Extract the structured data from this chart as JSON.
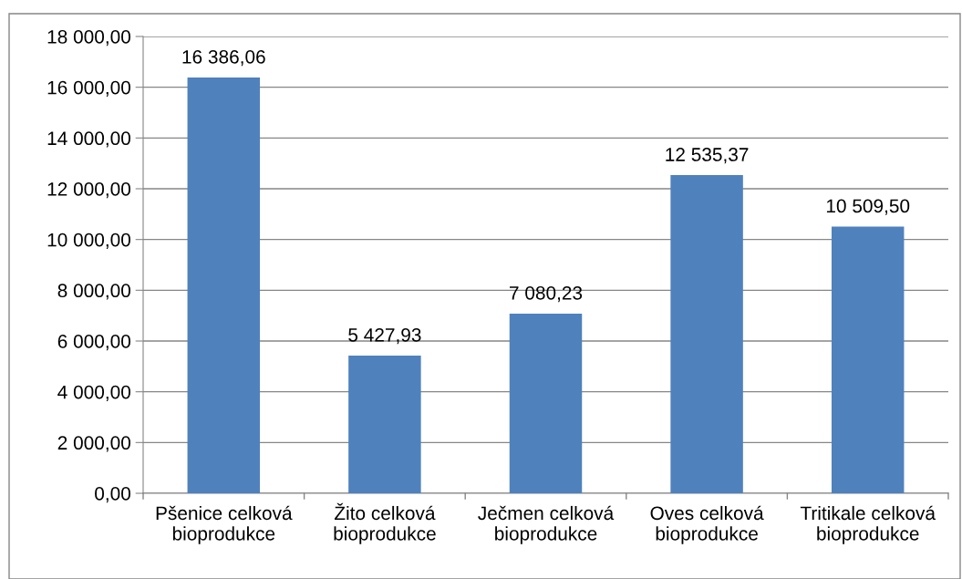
{
  "chart_data": {
    "type": "bar",
    "categories": [
      "Pšenice celková bioprodukce",
      "Žito celková bioprodukce",
      "Ječmen celková bioprodukce",
      "Oves celková bioprodukce",
      "Tritikale celková bioprodukce"
    ],
    "values": [
      16386.06,
      5427.93,
      7080.23,
      12535.37,
      10509.5
    ],
    "value_labels": [
      "16 386,06",
      "5 427,93",
      "7 080,23",
      "12 535,37",
      "10 509,50"
    ],
    "color": "#4f81bd",
    "ylim": [
      0,
      18000
    ],
    "yticks": [
      {
        "value": 0,
        "label": "0,00"
      },
      {
        "value": 2000,
        "label": "2 000,00"
      },
      {
        "value": 4000,
        "label": "4 000,00"
      },
      {
        "value": 6000,
        "label": "6 000,00"
      },
      {
        "value": 8000,
        "label": "8 000,00"
      },
      {
        "value": 10000,
        "label": "10 000,00"
      },
      {
        "value": 12000,
        "label": "12 000,00"
      },
      {
        "value": 14000,
        "label": "14 000,00"
      },
      {
        "value": 16000,
        "label": "16 000,00"
      },
      {
        "value": 18000,
        "label": "18 000,00"
      }
    ],
    "grid": "y",
    "legend": false
  }
}
